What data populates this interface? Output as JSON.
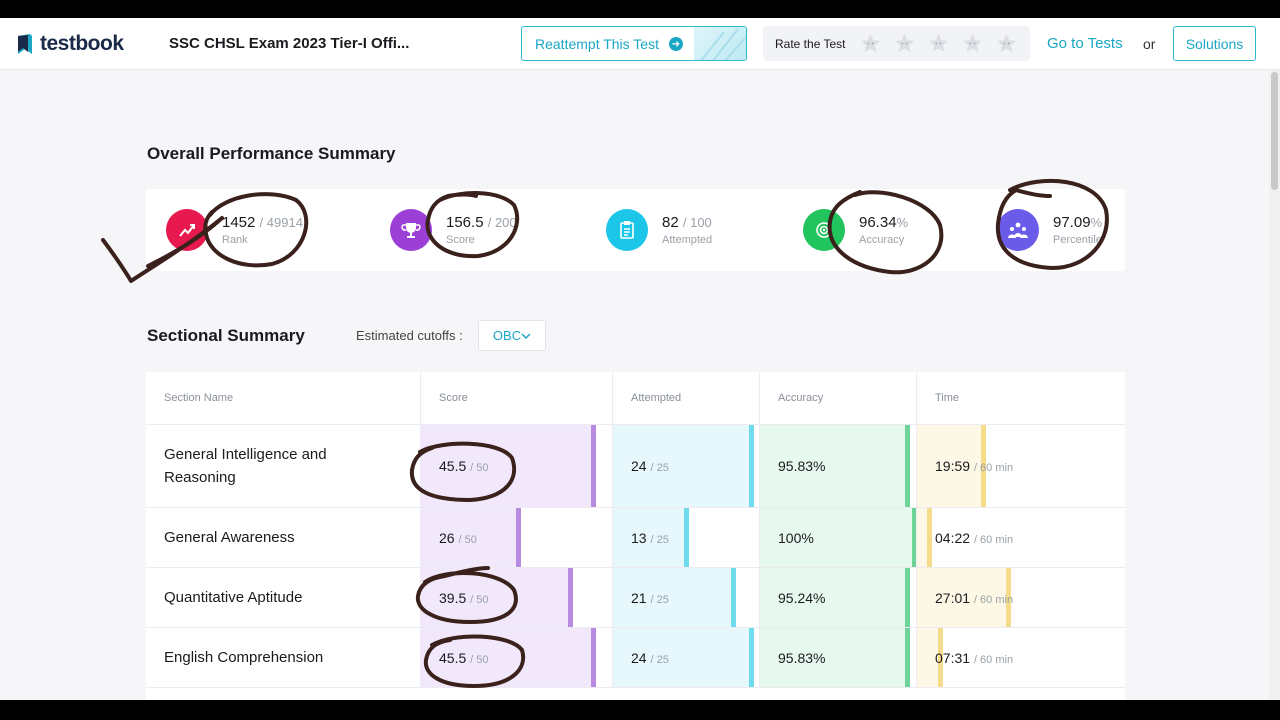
{
  "header": {
    "brand": "testbook",
    "exam_title": "SSC CHSL Exam 2023 Tier-I Offi...",
    "reattempt_label": "Reattempt This Test",
    "rate_label": "Rate the Test",
    "stars_count": 5,
    "goto_label": "Go to Tests",
    "or_label": "or",
    "solutions_label": "Solutions"
  },
  "overall": {
    "title": "Overall Performance Summary",
    "metrics": [
      {
        "value": "1452",
        "total": "/ 49914",
        "label": "Rank",
        "icon": "rank-icon",
        "color": "#e8194f"
      },
      {
        "value": "156.5",
        "total": "/ 200",
        "label": "Score",
        "icon": "trophy-icon",
        "color": "#9b3fd6"
      },
      {
        "value": "82",
        "total": "/ 100",
        "label": "Attempted",
        "icon": "clipboard-icon",
        "color": "#1cc6e8"
      },
      {
        "value": "96.34",
        "total": "%",
        "label": "Accuracy",
        "icon": "target-icon",
        "color": "#22c45e"
      },
      {
        "value": "97.09",
        "total": "%",
        "label": "Percentile",
        "icon": "people-icon",
        "color": "#6a5be8"
      }
    ]
  },
  "sectional": {
    "title": "Sectional Summary",
    "cutoff_label": "Estimated cutoffs :",
    "cutoff_value": "OBC",
    "columns": [
      "Section Name",
      "Score",
      "Attempted",
      "Accuracy",
      "Time"
    ],
    "rows": [
      {
        "name": "General Intelligence and Reasoning",
        "score": "45.5",
        "score_total": "/ 50",
        "score_frac": 0.91,
        "attempted": "24",
        "attempted_total": "/ 25",
        "attempted_frac": 0.96,
        "accuracy": "95.83%",
        "accuracy_frac": 0.9583,
        "time": "19:59",
        "time_total": "/ 60 min",
        "time_frac": 0.333
      },
      {
        "name": "General Awareness",
        "score": "26",
        "score_total": "/ 50",
        "score_frac": 0.52,
        "attempted": "13",
        "attempted_total": "/ 25",
        "attempted_frac": 0.52,
        "accuracy": "100%",
        "accuracy_frac": 1.0,
        "time": "04:22",
        "time_total": "/ 60 min",
        "time_frac": 0.073
      },
      {
        "name": "Quantitative Aptitude",
        "score": "39.5",
        "score_total": "/ 50",
        "score_frac": 0.79,
        "attempted": "21",
        "attempted_total": "/ 25",
        "attempted_frac": 0.84,
        "accuracy": "95.24%",
        "accuracy_frac": 0.9524,
        "time": "27:01",
        "time_total": "/ 60 min",
        "time_frac": 0.45
      },
      {
        "name": "English Comprehension",
        "score": "45.5",
        "score_total": "/ 50",
        "score_frac": 0.91,
        "attempted": "24",
        "attempted_total": "/ 25",
        "attempted_frac": 0.96,
        "accuracy": "95.83%",
        "accuracy_frac": 0.9583,
        "time": "07:31",
        "time_total": "/ 60 min",
        "time_frac": 0.125
      }
    ]
  },
  "colors": {
    "accent": "#1aa7c4",
    "score_fill": "#f1e8fb",
    "score_edge": "#b88be0",
    "attempted_fill": "#e6f8fc",
    "attempted_edge": "#6fdcee",
    "accuracy_fill": "#e7f8ee",
    "accuracy_edge": "#6ed49a",
    "time_fill": "#fdf8e6",
    "time_edge": "#f5dc8a",
    "annotation_ink": "#3a211c"
  }
}
